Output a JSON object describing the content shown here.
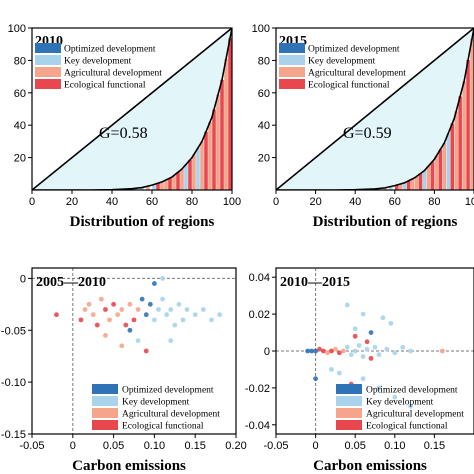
{
  "colors": {
    "optimized": "#2f73b6",
    "key": "#a9d3ea",
    "agricultural": "#f4a58c",
    "ecological": "#e8474d",
    "fill": "#e2f6fa"
  },
  "chart_data": [
    {
      "type": "area",
      "title": "2010",
      "xlabel": "Distribution of regions",
      "ylabel": "",
      "xlim": [
        0,
        100
      ],
      "ylim": [
        0,
        100
      ],
      "xticks": [
        "0",
        "20",
        "40",
        "60",
        "80",
        "100"
      ],
      "yticks": [
        "20",
        "40",
        "60",
        "80",
        "100"
      ],
      "annotation": "G=0.58",
      "legend": [
        "Optimized development",
        "Key development",
        "Agricultural development",
        "Ecological functional"
      ],
      "legend_position": "top-left",
      "curve": {
        "x": [
          0,
          10,
          20,
          30,
          40,
          50,
          55,
          60,
          65,
          70,
          75,
          80,
          85,
          90,
          95,
          100
        ],
        "y": [
          0,
          0,
          0,
          0,
          0.2,
          0.8,
          1.5,
          3,
          5,
          8,
          13,
          20,
          30,
          45,
          68,
          100
        ]
      },
      "bars": [
        {
          "x": 52,
          "c": "key"
        },
        {
          "x": 55,
          "c": "key"
        },
        {
          "x": 58,
          "c": "agricultural"
        },
        {
          "x": 61,
          "c": "key"
        },
        {
          "x": 63,
          "c": "ecological"
        },
        {
          "x": 65,
          "c": "agricultural"
        },
        {
          "x": 67,
          "c": "agricultural"
        },
        {
          "x": 69,
          "c": "ecological"
        },
        {
          "x": 71,
          "c": "agricultural"
        },
        {
          "x": 73,
          "c": "ecological"
        },
        {
          "x": 75,
          "c": "agricultural"
        },
        {
          "x": 77,
          "c": "key"
        },
        {
          "x": 79,
          "c": "ecological"
        },
        {
          "x": 81,
          "c": "agricultural"
        },
        {
          "x": 83,
          "c": "key"
        },
        {
          "x": 85,
          "c": "agricultural"
        },
        {
          "x": 87,
          "c": "ecological"
        },
        {
          "x": 89,
          "c": "agricultural"
        },
        {
          "x": 91,
          "c": "ecological"
        },
        {
          "x": 93,
          "c": "agricultural"
        },
        {
          "x": 95,
          "c": "ecological"
        },
        {
          "x": 97,
          "c": "agricultural"
        },
        {
          "x": 99,
          "c": "ecological"
        }
      ]
    },
    {
      "type": "area",
      "title": "2015",
      "xlabel": "Distribution of regions",
      "ylabel": "",
      "xlim": [
        0,
        100
      ],
      "ylim": [
        0,
        100
      ],
      "xticks": [
        "0",
        "20",
        "40",
        "60",
        "80",
        "100"
      ],
      "yticks": [
        "20",
        "40",
        "60",
        "80",
        "100"
      ],
      "annotation": "G=0.59",
      "legend": [
        "Optimized development",
        "Key development",
        "Agricultural development",
        "Ecological functional"
      ],
      "legend_position": "top-left",
      "curve": {
        "x": [
          0,
          10,
          20,
          30,
          40,
          50,
          55,
          60,
          65,
          70,
          75,
          80,
          85,
          90,
          95,
          100
        ],
        "y": [
          0,
          0,
          0,
          0,
          0.2,
          0.7,
          1.3,
          2.7,
          4.5,
          7.5,
          12,
          19,
          29,
          44,
          67,
          100
        ]
      },
      "bars": [
        {
          "x": 52,
          "c": "key"
        },
        {
          "x": 55,
          "c": "agricultural"
        },
        {
          "x": 58,
          "c": "key"
        },
        {
          "x": 61,
          "c": "ecological"
        },
        {
          "x": 63,
          "c": "agricultural"
        },
        {
          "x": 65,
          "c": "key"
        },
        {
          "x": 67,
          "c": "ecological"
        },
        {
          "x": 69,
          "c": "agricultural"
        },
        {
          "x": 71,
          "c": "agricultural"
        },
        {
          "x": 73,
          "c": "ecological"
        },
        {
          "x": 75,
          "c": "key"
        },
        {
          "x": 77,
          "c": "agricultural"
        },
        {
          "x": 79,
          "c": "ecological"
        },
        {
          "x": 81,
          "c": "agricultural"
        },
        {
          "x": 83,
          "c": "ecological"
        },
        {
          "x": 85,
          "c": "agricultural"
        },
        {
          "x": 87,
          "c": "key"
        },
        {
          "x": 89,
          "c": "ecological"
        },
        {
          "x": 91,
          "c": "agricultural"
        },
        {
          "x": 93,
          "c": "ecological"
        },
        {
          "x": 95,
          "c": "agricultural"
        },
        {
          "x": 97,
          "c": "ecological"
        },
        {
          "x": 99,
          "c": "agricultural"
        }
      ]
    },
    {
      "type": "scatter",
      "title": "2005—2010",
      "xlabel": "Carbon emissions",
      "ylabel": "",
      "xlim": [
        -0.05,
        0.2
      ],
      "ylim": [
        -0.15,
        0.01
      ],
      "xticks": [
        -0.05,
        0,
        0.05,
        0.1,
        0.15,
        0.2
      ],
      "xtick_labels": [
        "-0.05",
        "0",
        "0.05",
        "0.10",
        "0.15",
        "0.20"
      ],
      "yticks": [
        0,
        -0.05,
        -0.1,
        -0.15
      ],
      "ytick_labels": [
        "0",
        "-0.05",
        "-0.10",
        "-0.15"
      ],
      "legend": [
        "Optimized development",
        "Key development",
        "Agricultural development",
        "Ecological functional"
      ],
      "legend_position": "bottom-right",
      "points": [
        {
          "x": -0.02,
          "y": -0.035,
          "c": "ecological"
        },
        {
          "x": 0.01,
          "y": -0.04,
          "c": "ecological"
        },
        {
          "x": 0.015,
          "y": -0.03,
          "c": "agricultural"
        },
        {
          "x": 0.02,
          "y": -0.025,
          "c": "agricultural"
        },
        {
          "x": 0.025,
          "y": -0.035,
          "c": "agricultural"
        },
        {
          "x": 0.03,
          "y": -0.045,
          "c": "ecological"
        },
        {
          "x": 0.035,
          "y": -0.02,
          "c": "agricultural"
        },
        {
          "x": 0.04,
          "y": -0.03,
          "c": "ecological"
        },
        {
          "x": 0.045,
          "y": -0.04,
          "c": "agricultural"
        },
        {
          "x": 0.05,
          "y": -0.025,
          "c": "ecological"
        },
        {
          "x": 0.055,
          "y": -0.035,
          "c": "agricultural"
        },
        {
          "x": 0.06,
          "y": -0.03,
          "c": "agricultural"
        },
        {
          "x": 0.065,
          "y": -0.045,
          "c": "ecological"
        },
        {
          "x": 0.07,
          "y": -0.025,
          "c": "agricultural"
        },
        {
          "x": 0.075,
          "y": -0.04,
          "c": "ecological"
        },
        {
          "x": 0.08,
          "y": -0.03,
          "c": "agricultural"
        },
        {
          "x": 0.085,
          "y": -0.02,
          "c": "optimized"
        },
        {
          "x": 0.09,
          "y": -0.035,
          "c": "optimized"
        },
        {
          "x": 0.095,
          "y": -0.025,
          "c": "optimized"
        },
        {
          "x": 0.1,
          "y": -0.04,
          "c": "key"
        },
        {
          "x": 0.105,
          "y": -0.03,
          "c": "key"
        },
        {
          "x": 0.11,
          "y": -0.02,
          "c": "key"
        },
        {
          "x": 0.115,
          "y": -0.035,
          "c": "key"
        },
        {
          "x": 0.12,
          "y": -0.03,
          "c": "key"
        },
        {
          "x": 0.125,
          "y": -0.045,
          "c": "key"
        },
        {
          "x": 0.13,
          "y": -0.025,
          "c": "key"
        },
        {
          "x": 0.135,
          "y": -0.04,
          "c": "key"
        },
        {
          "x": 0.14,
          "y": -0.03,
          "c": "key"
        },
        {
          "x": 0.15,
          "y": -0.035,
          "c": "key"
        },
        {
          "x": 0.16,
          "y": -0.03,
          "c": "key"
        },
        {
          "x": 0.17,
          "y": -0.04,
          "c": "key"
        },
        {
          "x": 0.18,
          "y": -0.035,
          "c": "key"
        },
        {
          "x": 0.1,
          "y": -0.005,
          "c": "optimized"
        },
        {
          "x": 0.11,
          "y": 0.0,
          "c": "key"
        },
        {
          "x": 0.08,
          "y": -0.06,
          "c": "key"
        },
        {
          "x": 0.06,
          "y": -0.065,
          "c": "agricultural"
        },
        {
          "x": 0.09,
          "y": -0.07,
          "c": "ecological"
        },
        {
          "x": 0.04,
          "y": -0.055,
          "c": "agricultural"
        },
        {
          "x": 0.12,
          "y": -0.06,
          "c": "key"
        },
        {
          "x": 0.07,
          "y": -0.05,
          "c": "optimized"
        }
      ]
    },
    {
      "type": "scatter",
      "title": "2010—2015",
      "xlabel": "Carbon emissions",
      "ylabel": "",
      "xlim": [
        -0.05,
        0.2
      ],
      "ylim": [
        -0.045,
        0.045
      ],
      "xticks": [
        -0.05,
        0,
        0.05,
        0.1,
        0.15
      ],
      "xtick_labels": [
        "-0.05",
        "0",
        "0.05",
        "0.10",
        "0.15"
      ],
      "yticks": [
        0.04,
        0.02,
        0,
        -0.02,
        -0.04
      ],
      "ytick_labels": [
        "0.04",
        "0.02",
        "0",
        "-0.02",
        "-0.04"
      ],
      "legend": [
        "Optimized development",
        "Key development",
        "Agricultural development",
        "Ecological functional"
      ],
      "legend_position": "bottom-right",
      "points": [
        {
          "x": -0.01,
          "y": 0.0,
          "c": "optimized"
        },
        {
          "x": -0.005,
          "y": 0.0,
          "c": "optimized"
        },
        {
          "x": 0.0,
          "y": 0.0,
          "c": "optimized"
        },
        {
          "x": 0.005,
          "y": 0.001,
          "c": "ecological"
        },
        {
          "x": 0.01,
          "y": 0.0,
          "c": "ecological"
        },
        {
          "x": 0.015,
          "y": -0.001,
          "c": "agricultural"
        },
        {
          "x": 0.02,
          "y": 0.0,
          "c": "ecological"
        },
        {
          "x": 0.025,
          "y": 0.001,
          "c": "agricultural"
        },
        {
          "x": 0.03,
          "y": -0.001,
          "c": "ecological"
        },
        {
          "x": 0.035,
          "y": 0.0,
          "c": "agricultural"
        },
        {
          "x": 0.04,
          "y": 0.002,
          "c": "key"
        },
        {
          "x": 0.045,
          "y": -0.002,
          "c": "key"
        },
        {
          "x": 0.05,
          "y": 0.0,
          "c": "key"
        },
        {
          "x": 0.055,
          "y": 0.003,
          "c": "key"
        },
        {
          "x": 0.06,
          "y": -0.003,
          "c": "key"
        },
        {
          "x": 0.065,
          "y": 0.001,
          "c": "key"
        },
        {
          "x": 0.07,
          "y": -0.004,
          "c": "ecological"
        },
        {
          "x": 0.075,
          "y": 0.002,
          "c": "key"
        },
        {
          "x": 0.08,
          "y": -0.002,
          "c": "key"
        },
        {
          "x": 0.09,
          "y": 0.001,
          "c": "key"
        },
        {
          "x": 0.1,
          "y": -0.001,
          "c": "key"
        },
        {
          "x": 0.11,
          "y": 0.002,
          "c": "key"
        },
        {
          "x": 0.12,
          "y": 0.0,
          "c": "key"
        },
        {
          "x": 0.05,
          "y": 0.012,
          "c": "key"
        },
        {
          "x": 0.06,
          "y": 0.02,
          "c": "key"
        },
        {
          "x": 0.085,
          "y": 0.018,
          "c": "key"
        },
        {
          "x": 0.095,
          "y": 0.015,
          "c": "key"
        },
        {
          "x": 0.04,
          "y": 0.025,
          "c": "key"
        },
        {
          "x": 0.16,
          "y": 0.0,
          "c": "agricultural"
        },
        {
          "x": 0.0,
          "y": -0.015,
          "c": "optimized"
        },
        {
          "x": 0.02,
          "y": -0.01,
          "c": "key"
        },
        {
          "x": 0.03,
          "y": -0.012,
          "c": "key"
        },
        {
          "x": 0.045,
          "y": -0.018,
          "c": "ecological"
        },
        {
          "x": 0.06,
          "y": -0.015,
          "c": "key"
        },
        {
          "x": 0.08,
          "y": -0.02,
          "c": "key"
        },
        {
          "x": 0.1,
          "y": -0.025,
          "c": "key"
        },
        {
          "x": 0.12,
          "y": -0.03,
          "c": "key"
        },
        {
          "x": 0.05,
          "y": 0.008,
          "c": "ecological"
        },
        {
          "x": 0.065,
          "y": 0.005,
          "c": "ecological"
        },
        {
          "x": 0.07,
          "y": 0.01,
          "c": "optimized"
        }
      ]
    }
  ]
}
